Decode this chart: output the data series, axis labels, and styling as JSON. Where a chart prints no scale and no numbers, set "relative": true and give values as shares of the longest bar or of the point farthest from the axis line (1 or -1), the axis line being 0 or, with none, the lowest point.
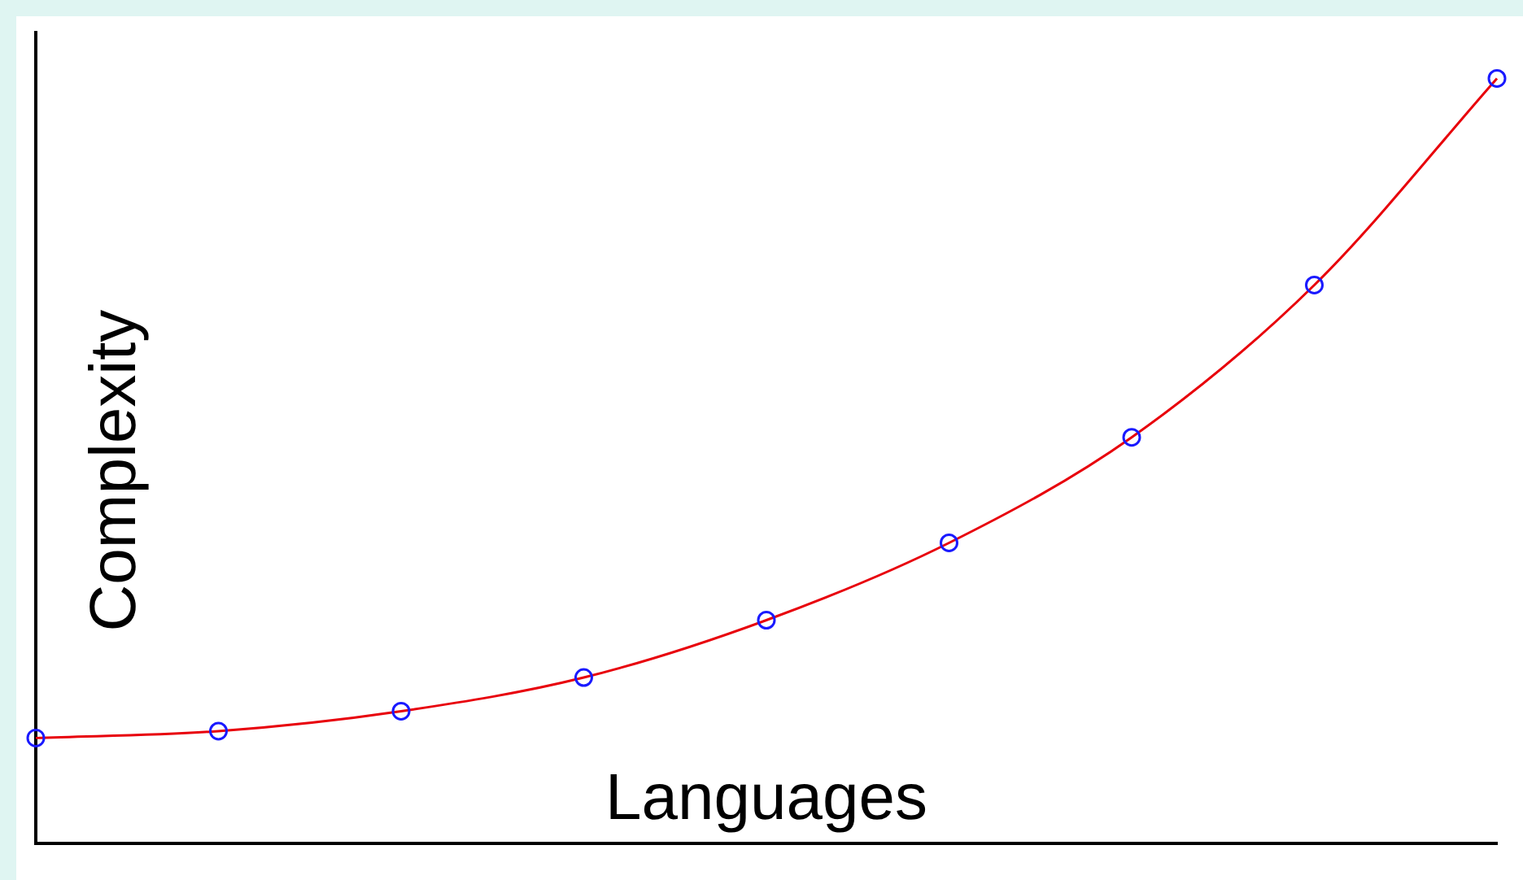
{
  "chart_data": {
    "type": "line",
    "xlabel": "Languages",
    "ylabel": "Complexity",
    "relative": true,
    "categories": [
      null,
      null,
      null,
      null,
      null,
      null,
      null,
      null,
      null
    ],
    "series": [
      {
        "color": "#e8000b",
        "values": [
          0.138,
          0.147,
          0.173,
          0.217,
          0.292,
          0.393,
          0.531,
          0.73,
          1
        ]
      }
    ],
    "marker": "circle",
    "grid": false,
    "legend": false
  }
}
